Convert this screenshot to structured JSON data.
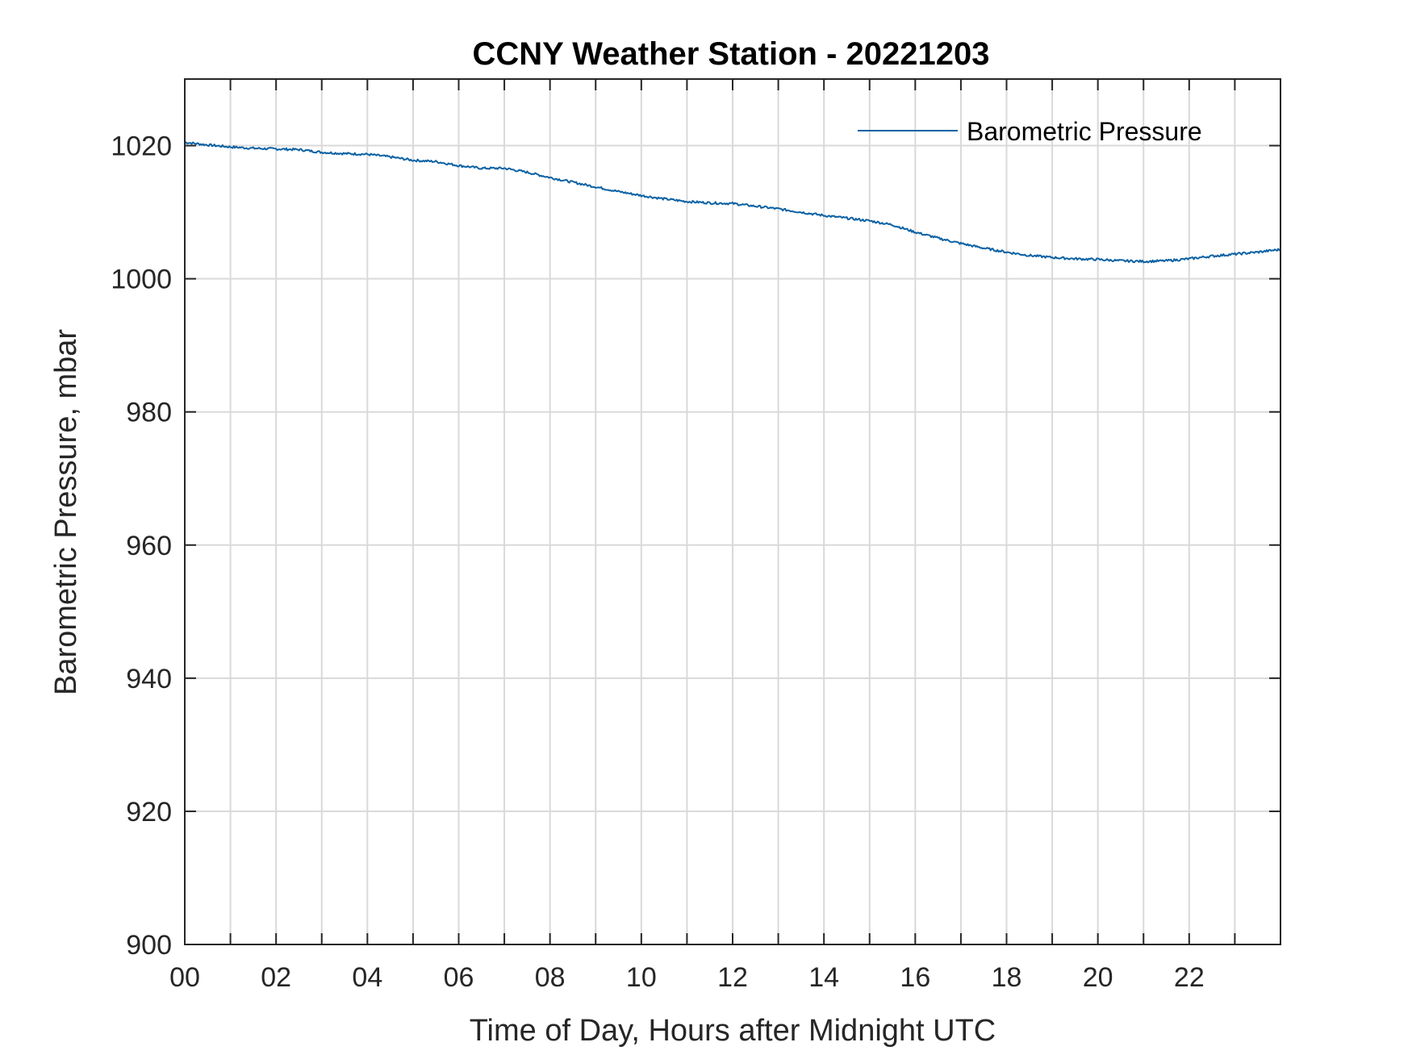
{
  "chart_data": {
    "type": "line",
    "title": "CCNY Weather Station - 20221203",
    "xlabel": "Time of Day, Hours after Midnight UTC",
    "ylabel": "Barometric Pressure, mbar",
    "xlim": [
      0,
      24
    ],
    "ylim": [
      900,
      1030
    ],
    "x_ticks": [
      0,
      2,
      4,
      6,
      8,
      10,
      12,
      14,
      16,
      18,
      20,
      22
    ],
    "x_tick_labels": [
      "00",
      "02",
      "04",
      "06",
      "08",
      "10",
      "12",
      "14",
      "16",
      "18",
      "20",
      "22"
    ],
    "y_ticks": [
      900,
      920,
      940,
      960,
      980,
      1000,
      1020
    ],
    "y_tick_labels": [
      "900",
      "920",
      "940",
      "960",
      "980",
      "1000",
      "1020"
    ],
    "grid": true,
    "legend_position": "top-right",
    "series": [
      {
        "name": "Barometric Pressure",
        "color": "#0b62a4",
        "x": [
          0,
          0.5,
          1,
          1.5,
          2,
          2.5,
          3,
          3.5,
          4,
          4.5,
          5,
          5.5,
          6,
          6.5,
          7,
          7.5,
          8,
          8.5,
          9,
          9.5,
          10,
          10.5,
          11,
          11.5,
          12,
          12.5,
          13,
          13.5,
          14,
          14.5,
          15,
          15.5,
          16,
          16.5,
          17,
          17.5,
          18,
          18.5,
          19,
          19.5,
          20,
          20.5,
          21,
          21.5,
          22,
          22.5,
          23,
          23.5,
          24
        ],
        "y": [
          1020.5,
          1020.1,
          1019.8,
          1019.6,
          1019.5,
          1019.4,
          1019.0,
          1018.8,
          1018.7,
          1018.3,
          1017.8,
          1017.6,
          1017.0,
          1016.6,
          1016.6,
          1016.0,
          1015.2,
          1014.5,
          1013.8,
          1013.1,
          1012.5,
          1012.0,
          1011.6,
          1011.4,
          1011.3,
          1010.9,
          1010.5,
          1010.0,
          1009.5,
          1009.1,
          1008.7,
          1008.1,
          1007.0,
          1006.1,
          1005.3,
          1004.6,
          1004.0,
          1003.5,
          1003.2,
          1003.0,
          1002.9,
          1002.7,
          1002.6,
          1002.7,
          1003.0,
          1003.4,
          1003.7,
          1004.0,
          1004.4
        ]
      }
    ]
  }
}
